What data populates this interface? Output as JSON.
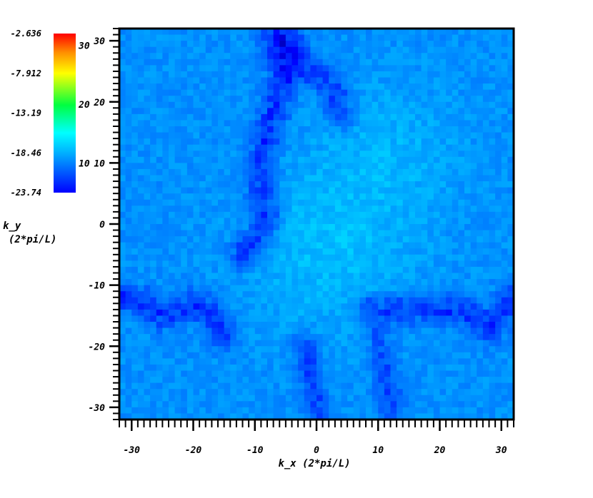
{
  "chart_data": {
    "type": "heatmap",
    "title": "",
    "xlabel": "k_x  (2*pi/L)",
    "ylabel": "k_y",
    "ylabel_unit": "(2*pi/L)",
    "xlim": [
      -32,
      32
    ],
    "ylim": [
      -32,
      32
    ],
    "x_ticks": [
      -30,
      -20,
      -10,
      0,
      10,
      20,
      30
    ],
    "y_ticks": [
      -30,
      -20,
      -10,
      0,
      10,
      20,
      30
    ],
    "grid": false,
    "colormap": "jet",
    "colorbar": {
      "ticks": [
        10,
        20,
        30
      ],
      "range": [
        5,
        32
      ],
      "value_labels": [
        "-2.636",
        "-7.912",
        "-13.19",
        "-18.46",
        "-23.74"
      ]
    },
    "grid_size": 64,
    "base_value": 12.2,
    "features": [
      {
        "desc": "dark ridge upper-left",
        "points": [
          [
            -7,
            30
          ],
          [
            -6,
            27
          ],
          [
            -5,
            24
          ],
          [
            -7,
            18
          ],
          [
            -8,
            15
          ],
          [
            -9,
            11
          ],
          [
            -9,
            6
          ],
          [
            -8,
            0
          ],
          [
            -12,
            -5
          ]
        ],
        "depth": 2.6,
        "width": 1.6
      },
      {
        "desc": "dark arc top",
        "points": [
          [
            -5,
            31
          ],
          [
            -2,
            26
          ],
          [
            1,
            24
          ],
          [
            3,
            21
          ],
          [
            4,
            18
          ]
        ],
        "depth": 2.4,
        "width": 1.5
      },
      {
        "desc": "dark ridge lower-left",
        "points": [
          [
            -32,
            -12
          ],
          [
            -28,
            -13
          ],
          [
            -25,
            -15
          ],
          [
            -22,
            -14
          ],
          [
            -20,
            -13
          ],
          [
            -18,
            -14
          ],
          [
            -15,
            -18
          ]
        ],
        "depth": 2.4,
        "width": 1.6
      },
      {
        "desc": "dark ridge lower-right",
        "points": [
          [
            9,
            -14
          ],
          [
            14,
            -14
          ],
          [
            18,
            -14
          ],
          [
            22,
            -14
          ],
          [
            25,
            -15
          ],
          [
            28,
            -17
          ],
          [
            32,
            -12
          ]
        ],
        "depth": 2.4,
        "width": 1.7
      },
      {
        "desc": "dark vertical lower-middle",
        "points": [
          [
            -2,
            -20
          ],
          [
            -1,
            -25
          ],
          [
            0,
            -29
          ],
          [
            1,
            -32
          ]
        ],
        "depth": 2.0,
        "width": 1.4
      },
      {
        "desc": "dark vertical lower-right",
        "points": [
          [
            10,
            -18
          ],
          [
            11,
            -24
          ],
          [
            12,
            -30
          ]
        ],
        "depth": 1.8,
        "width": 1.5
      }
    ]
  }
}
